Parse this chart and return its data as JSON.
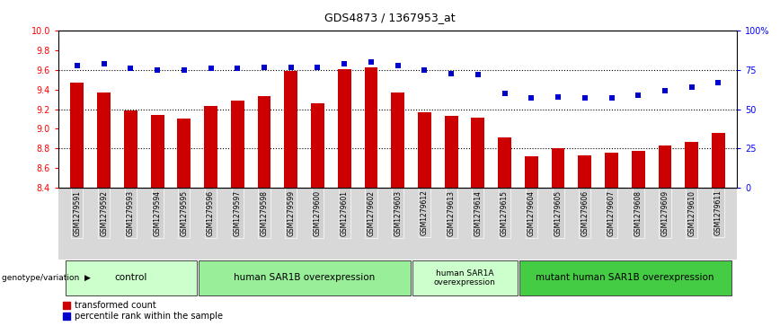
{
  "title": "GDS4873 / 1367953_at",
  "samples": [
    "GSM1279591",
    "GSM1279592",
    "GSM1279593",
    "GSM1279594",
    "GSM1279595",
    "GSM1279596",
    "GSM1279597",
    "GSM1279598",
    "GSM1279599",
    "GSM1279600",
    "GSM1279601",
    "GSM1279602",
    "GSM1279603",
    "GSM1279612",
    "GSM1279613",
    "GSM1279614",
    "GSM1279615",
    "GSM1279604",
    "GSM1279605",
    "GSM1279606",
    "GSM1279607",
    "GSM1279608",
    "GSM1279609",
    "GSM1279610",
    "GSM1279611"
  ],
  "bar_values": [
    9.47,
    9.37,
    9.19,
    9.14,
    9.1,
    9.23,
    9.29,
    9.33,
    9.59,
    9.26,
    9.61,
    9.63,
    9.37,
    9.17,
    9.13,
    9.11,
    8.91,
    8.72,
    8.8,
    8.73,
    8.76,
    8.77,
    8.83,
    8.87,
    8.96
  ],
  "pct_values": [
    78,
    79,
    76,
    75,
    75,
    76,
    76,
    77,
    77,
    77,
    79,
    80,
    78,
    75,
    73,
    72,
    60,
    57,
    58,
    57,
    57,
    59,
    62,
    64,
    67
  ],
  "ylim_left": [
    8.4,
    10.0
  ],
  "ylim_right": [
    0,
    100
  ],
  "bar_color": "#cc0000",
  "dot_color": "#0000cc",
  "groups": [
    {
      "label": "control",
      "start": 0,
      "end": 5,
      "color": "#ccffcc"
    },
    {
      "label": "human SAR1B overexpression",
      "start": 5,
      "end": 13,
      "color": "#99ee99"
    },
    {
      "label": "human SAR1A\noverexpression",
      "start": 13,
      "end": 17,
      "color": "#ccffcc"
    },
    {
      "label": "mutant human SAR1B overexpression",
      "start": 17,
      "end": 25,
      "color": "#44cc44"
    }
  ],
  "genotype_label": "genotype/variation",
  "legend_bar": "transformed count",
  "legend_dot": "percentile rank within the sample",
  "yticks_left": [
    8.4,
    8.6,
    8.8,
    9.0,
    9.2,
    9.4,
    9.6,
    9.8,
    10.0
  ],
  "yticks_right_vals": [
    0,
    25,
    50,
    75,
    100
  ],
  "yticks_right_labels": [
    "0",
    "25",
    "50",
    "75",
    "100%"
  ],
  "hlines": [
    9.6,
    9.2,
    8.8
  ],
  "xticklabel_bg": "#d0d0d0"
}
